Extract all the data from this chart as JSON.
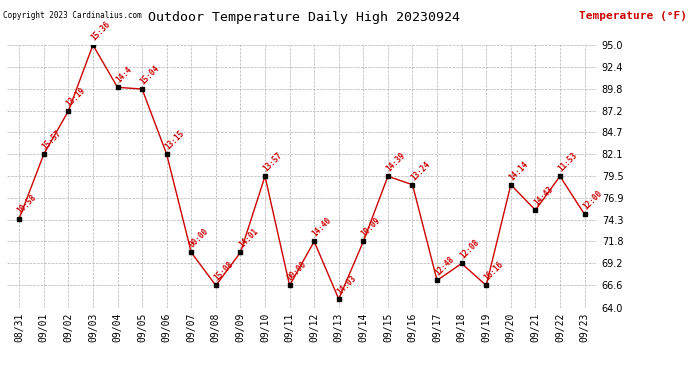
{
  "title": "Outdoor Temperature Daily High 20230924",
  "ylabel": "Temperature (°F)",
  "background_color": "#ffffff",
  "line_color": "#cc0000",
  "marker_color": "#000000",
  "grid_color": "#b0b0b0",
  "text_color": "#cc0000",
  "copyright_text": "Copyright 2023 Cardinalius.com",
  "ylim": [
    64.0,
    95.0
  ],
  "yticks": [
    64.0,
    66.6,
    69.2,
    71.8,
    74.3,
    76.9,
    79.5,
    82.1,
    84.7,
    87.2,
    89.8,
    92.4,
    95.0
  ],
  "dates": [
    "08/31",
    "09/01",
    "09/02",
    "09/03",
    "09/04",
    "09/05",
    "09/06",
    "09/07",
    "09/08",
    "09/09",
    "09/10",
    "09/11",
    "09/12",
    "09/13",
    "09/14",
    "09/15",
    "09/16",
    "09/17",
    "09/18",
    "09/19",
    "09/20",
    "09/21",
    "09/22",
    "09/23"
  ],
  "temps": [
    74.5,
    82.1,
    87.2,
    95.0,
    90.0,
    89.8,
    82.1,
    70.5,
    66.6,
    70.5,
    79.5,
    66.6,
    71.8,
    65.0,
    71.8,
    79.5,
    78.5,
    67.2,
    69.2,
    66.6,
    78.5,
    75.5,
    79.5,
    75.0
  ],
  "time_labels": [
    "10:58",
    "15:57",
    "13:19",
    "15:36",
    "14:4",
    "15:04",
    "13:15",
    "00:00",
    "15:08",
    "14:01",
    "13:57",
    "00:00",
    "14:40",
    "14:03",
    "10:09",
    "14:39",
    "13:24",
    "12:48",
    "12:08",
    "16:16",
    "14:14",
    "14:43",
    "11:53",
    "12:00"
  ]
}
